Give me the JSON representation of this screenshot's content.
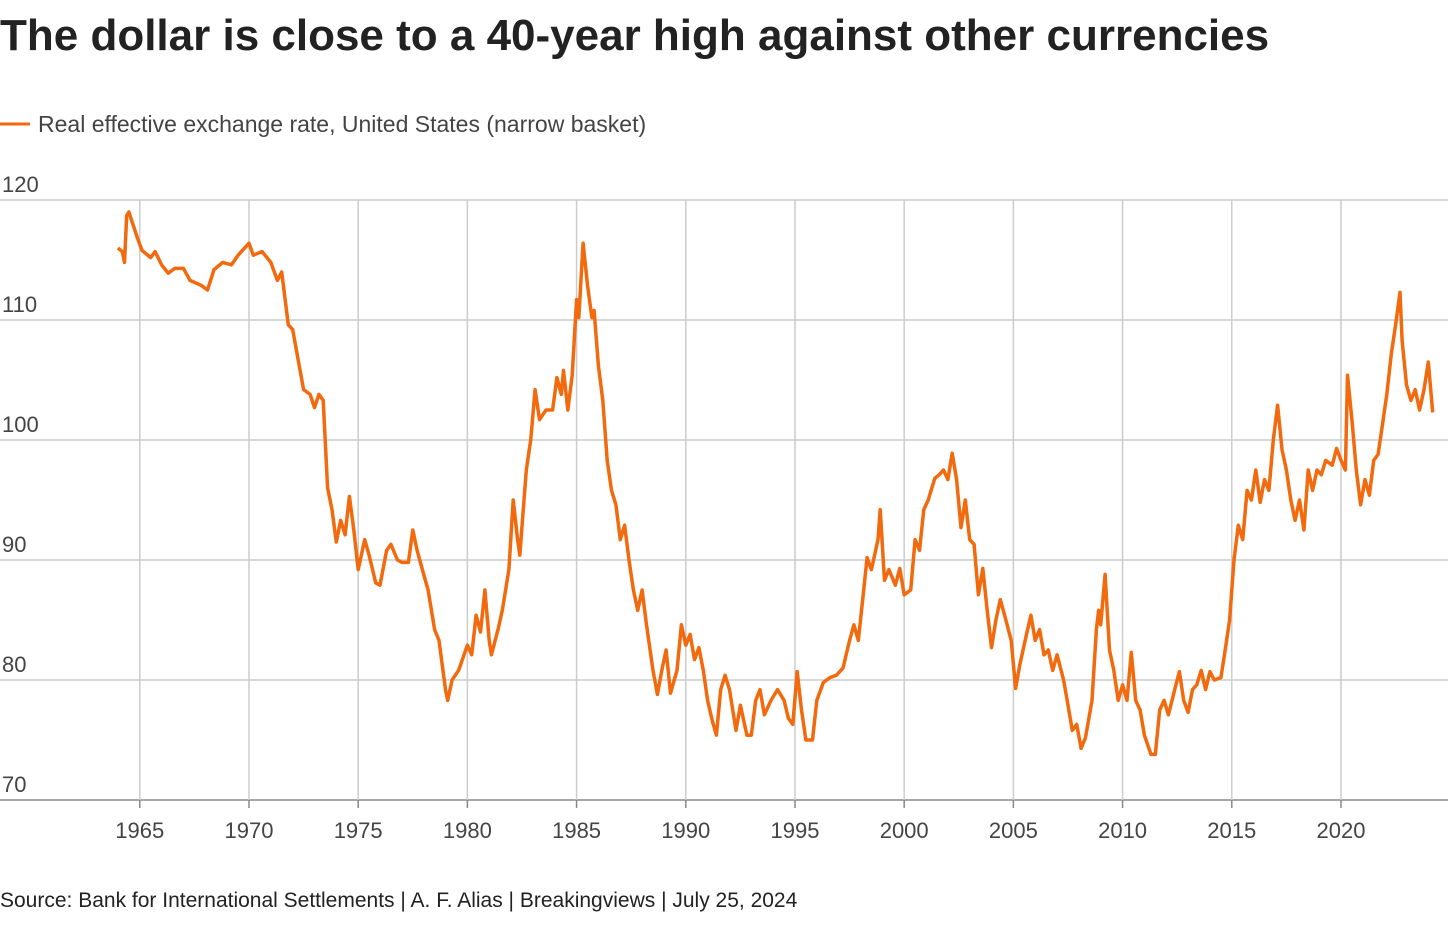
{
  "chart_data": {
    "type": "line",
    "title": "The dollar is close to a 40-year high against other currencies",
    "source": "Source: Bank for International Settlements | A. F. Alias | Breakingviews | July 25, 2024",
    "xlim": [
      1958.6,
      2024.9
    ],
    "ylim": [
      70,
      120
    ],
    "xticks": [
      1965,
      1970,
      1975,
      1980,
      1985,
      1990,
      1995,
      2000,
      2005,
      2010,
      2015,
      2020
    ],
    "yticks": [
      70,
      80,
      90,
      100,
      110,
      120
    ],
    "grid": true,
    "x": [
      1964.0,
      1964.2,
      1964.3,
      1964.4,
      1964.5,
      1964.7,
      1964.9,
      1965.1,
      1965.5,
      1965.7,
      1966.0,
      1966.3,
      1966.6,
      1967.0,
      1967.3,
      1967.8,
      1968.1,
      1968.4,
      1968.8,
      1969.2,
      1969.5,
      1970.0,
      1970.2,
      1970.6,
      1971.0,
      1971.3,
      1971.5,
      1971.8,
      1972.0,
      1972.3,
      1972.5,
      1972.8,
      1973.0,
      1973.2,
      1973.4,
      1973.6,
      1973.8,
      1974.0,
      1974.2,
      1974.4,
      1974.6,
      1974.8,
      1975.0,
      1975.3,
      1975.5,
      1975.8,
      1976.0,
      1976.3,
      1976.5,
      1976.8,
      1977.0,
      1977.3,
      1977.5,
      1977.7,
      1978.0,
      1978.2,
      1978.5,
      1978.7,
      1979.0,
      1979.1,
      1979.3,
      1979.6,
      1980.0,
      1980.2,
      1980.4,
      1980.6,
      1980.8,
      1981.0,
      1981.1,
      1981.4,
      1981.6,
      1981.9,
      1982.1,
      1982.3,
      1982.4,
      1982.7,
      1982.9,
      1983.1,
      1983.3,
      1983.6,
      1983.9,
      1984.1,
      1984.3,
      1984.4,
      1984.6,
      1984.8,
      1985.0,
      1985.1,
      1985.3,
      1985.5,
      1985.7,
      1985.8,
      1986.0,
      1986.2,
      1986.4,
      1986.6,
      1986.8,
      1987.0,
      1987.2,
      1987.4,
      1987.6,
      1987.8,
      1988.0,
      1988.2,
      1988.5,
      1988.7,
      1988.9,
      1989.1,
      1989.3,
      1989.6,
      1989.8,
      1990.0,
      1990.2,
      1990.4,
      1990.6,
      1990.8,
      1991.0,
      1991.2,
      1991.4,
      1991.6,
      1991.8,
      1992.0,
      1992.3,
      1992.5,
      1992.8,
      1993.0,
      1993.2,
      1993.4,
      1993.6,
      1993.9,
      1994.2,
      1994.5,
      1994.7,
      1994.9,
      1995.1,
      1995.3,
      1995.5,
      1995.8,
      1996.0,
      1996.3,
      1996.6,
      1996.9,
      1997.2,
      1997.5,
      1997.7,
      1997.9,
      1998.1,
      1998.3,
      1998.5,
      1998.8,
      1998.9,
      1999.1,
      1999.3,
      1999.6,
      1999.8,
      2000.0,
      2000.3,
      2000.5,
      2000.7,
      2000.9,
      2001.1,
      2001.4,
      2001.6,
      2001.8,
      2002.0,
      2002.2,
      2002.4,
      2002.6,
      2002.8,
      2003.0,
      2003.2,
      2003.4,
      2003.6,
      2003.8,
      2004.0,
      2004.2,
      2004.4,
      2004.6,
      2004.9,
      2005.1,
      2005.3,
      2005.6,
      2005.8,
      2006.0,
      2006.2,
      2006.4,
      2006.6,
      2006.8,
      2007.0,
      2007.3,
      2007.5,
      2007.7,
      2007.9,
      2008.1,
      2008.3,
      2008.6,
      2008.8,
      2008.9,
      2009.0,
      2009.2,
      2009.4,
      2009.6,
      2009.8,
      2010.0,
      2010.2,
      2010.4,
      2010.6,
      2010.8,
      2011.0,
      2011.3,
      2011.5,
      2011.7,
      2011.9,
      2012.1,
      2012.4,
      2012.6,
      2012.8,
      2013.0,
      2013.2,
      2013.4,
      2013.6,
      2013.8,
      2014.0,
      2014.2,
      2014.5,
      2014.7,
      2014.9,
      2015.1,
      2015.3,
      2015.5,
      2015.7,
      2015.9,
      2016.1,
      2016.3,
      2016.5,
      2016.7,
      2016.9,
      2017.1,
      2017.3,
      2017.5,
      2017.7,
      2017.9,
      2018.1,
      2018.3,
      2018.5,
      2018.7,
      2018.9,
      2019.1,
      2019.3,
      2019.6,
      2019.8,
      2020.0,
      2020.2,
      2020.3,
      2020.5,
      2020.7,
      2020.9,
      2021.1,
      2021.3,
      2021.5,
      2021.7,
      2021.9,
      2022.1,
      2022.3,
      2022.5,
      2022.7,
      2022.8,
      2023.0,
      2023.2,
      2023.4,
      2023.6,
      2023.8,
      2024.0,
      2024.2
    ],
    "series": [
      {
        "name": "Real effective exchange rate, United States (narrow basket)",
        "color": "#f26a0d",
        "values": [
          116,
          115.7,
          114.8,
          118.7,
          119,
          117.9,
          116.8,
          115.8,
          115.2,
          115.7,
          114.6,
          113.9,
          114.3,
          114.3,
          113.3,
          112.9,
          112.5,
          114.2,
          114.8,
          114.6,
          115.4,
          116.4,
          115.4,
          115.7,
          114.8,
          113.3,
          114,
          109.6,
          109.2,
          106.2,
          104.2,
          103.8,
          102.7,
          103.8,
          103.3,
          96,
          94.2,
          91.5,
          93.3,
          92.1,
          95.3,
          92.5,
          89.2,
          91.7,
          90.4,
          88.1,
          87.9,
          90.8,
          91.3,
          90,
          89.8,
          89.8,
          92.5,
          90.8,
          88.8,
          87.5,
          84.2,
          83.3,
          79.2,
          78.3,
          80,
          80.8,
          82.9,
          82.1,
          85.4,
          84,
          87.5,
          83.3,
          82.1,
          84.2,
          85.8,
          89.2,
          95,
          91.7,
          90.4,
          97.5,
          100,
          104.2,
          101.7,
          102.5,
          102.5,
          105.2,
          103.8,
          105.8,
          102.5,
          105.4,
          111.7,
          110.2,
          116.4,
          112.9,
          110.2,
          110.8,
          106.2,
          103.3,
          98.3,
          95.8,
          94.6,
          91.7,
          92.9,
          90,
          87.5,
          85.8,
          87.5,
          84.6,
          80.8,
          78.8,
          80.8,
          82.5,
          78.9,
          80.8,
          84.6,
          82.9,
          83.8,
          81.7,
          82.7,
          80.8,
          78.3,
          76.7,
          75.4,
          79.2,
          80.4,
          79.2,
          75.8,
          77.9,
          75.4,
          75.4,
          78.3,
          79.2,
          77.1,
          78.3,
          79.2,
          78.3,
          76.8,
          76.3,
          80.7,
          77.5,
          75,
          75,
          78.3,
          79.8,
          80.2,
          80.4,
          81,
          83.3,
          84.6,
          83.3,
          86.7,
          90.2,
          89.2,
          91.7,
          94.2,
          88.3,
          89.2,
          87.9,
          89.3,
          87.1,
          87.5,
          91.7,
          90.8,
          94.2,
          95,
          96.8,
          97.1,
          97.5,
          96.7,
          98.9,
          96.7,
          92.7,
          95,
          91.7,
          91.3,
          87.1,
          89.3,
          85.8,
          82.7,
          85,
          86.7,
          85.4,
          83.3,
          79.3,
          81.3,
          83.8,
          85.4,
          83.3,
          84.2,
          82.1,
          82.5,
          80.8,
          82.1,
          80,
          77.9,
          75.8,
          76.3,
          74.3,
          75.2,
          78.3,
          84.2,
          85.8,
          84.6,
          88.8,
          82.5,
          80.8,
          78.3,
          79.6,
          78.3,
          82.3,
          78.3,
          77.5,
          75.4,
          73.8,
          73.8,
          77.5,
          78.3,
          77.1,
          79.3,
          80.7,
          78.3,
          77.3,
          79.2,
          79.6,
          80.8,
          79.2,
          80.7,
          80,
          80.2,
          82.5,
          85,
          90,
          92.9,
          91.7,
          95.8,
          95,
          97.5,
          94.8,
          96.7,
          95.8,
          100,
          102.9,
          99.2,
          97.5,
          95,
          93.3,
          95,
          92.5,
          97.5,
          95.8,
          97.5,
          97.1,
          98.3,
          97.9,
          99.3,
          98.3,
          97.5,
          105.4,
          101.7,
          97.5,
          94.6,
          96.7,
          95.4,
          98.3,
          98.8,
          101.3,
          103.8,
          107.1,
          109.6,
          112.3,
          108.3,
          104.6,
          103.3,
          104.2,
          102.5,
          104.2,
          106.5,
          102.3
        ]
      }
    ]
  }
}
